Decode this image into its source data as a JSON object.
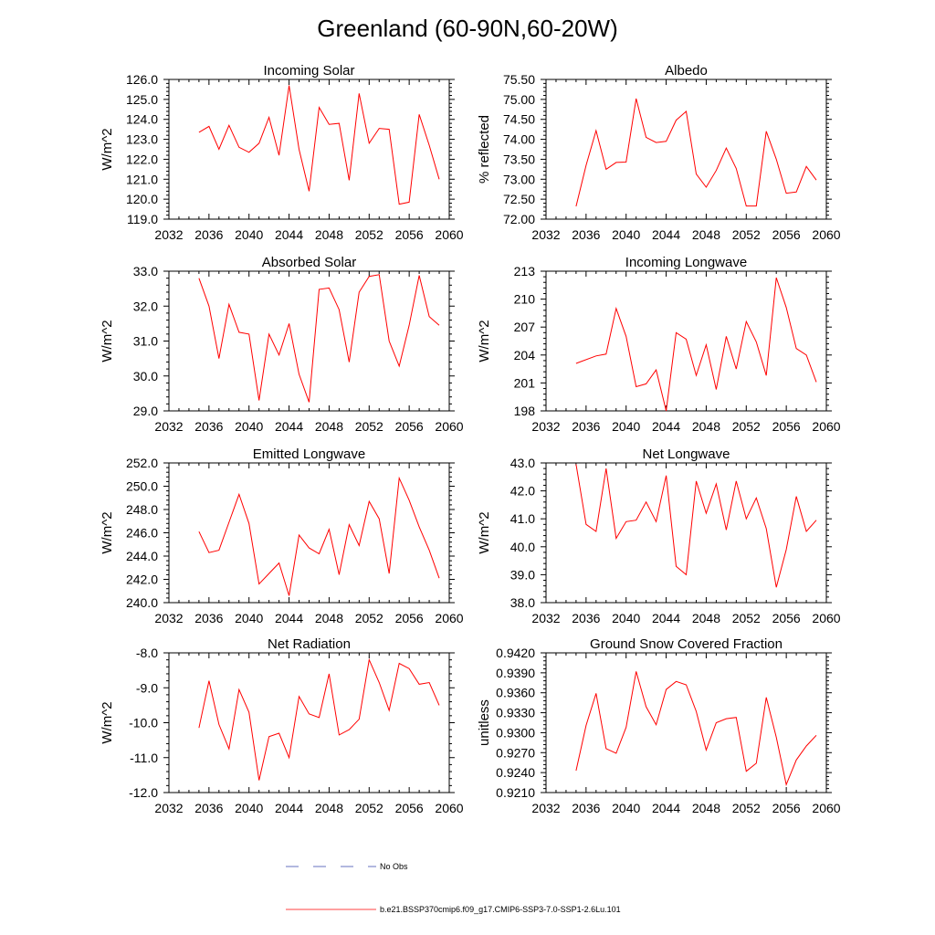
{
  "figure_title": "Greenland (60-90N,60-20W)",
  "colors": {
    "model": "#ff0000",
    "obs": "#3344aa",
    "axis": "#000000"
  },
  "legend": {
    "obs_label": "No Obs",
    "model_label": "b.e21.BSSP370cmip6.f09_g17.CMIP6-SSP3-7.0-SSP1-2.6Lu.101"
  },
  "chart_data": [
    {
      "type": "line",
      "title": "Incoming Solar",
      "ylabel": "W/m^2",
      "xlim": [
        2032,
        2060
      ],
      "ylim": [
        119.0,
        126.0
      ],
      "x_ticks": [
        2032,
        2036,
        2040,
        2044,
        2048,
        2052,
        2056,
        2060
      ],
      "y_ticks": [
        "119.0",
        "120.0",
        "121.0",
        "122.0",
        "123.0",
        "124.0",
        "125.0",
        "126.0"
      ],
      "x": [
        2035,
        2036,
        2037,
        2038,
        2039,
        2040,
        2041,
        2042,
        2043,
        2044,
        2045,
        2046,
        2047,
        2048,
        2049,
        2050,
        2051,
        2052,
        2053,
        2054,
        2055,
        2056,
        2057,
        2058,
        2059
      ],
      "series": [
        {
          "name": "b.e21.BSSP370cmip6.f09_g17.CMIP6-SSP3-7.0-SSP1-2.6Lu.101",
          "values": [
            123.35,
            123.65,
            122.5,
            123.7,
            122.6,
            122.35,
            122.8,
            124.1,
            122.2,
            125.7,
            122.5,
            120.4,
            124.6,
            123.75,
            123.8,
            120.95,
            125.3,
            122.8,
            123.55,
            123.5,
            119.75,
            119.85,
            124.25,
            122.7,
            121.0
          ]
        }
      ]
    },
    {
      "type": "line",
      "title": "Albedo",
      "ylabel": "% reflected",
      "xlim": [
        2032,
        2060
      ],
      "ylim": [
        72.0,
        75.5
      ],
      "x_ticks": [
        2032,
        2036,
        2040,
        2044,
        2048,
        2052,
        2056,
        2060
      ],
      "y_ticks": [
        "72.00",
        "72.50",
        "73.00",
        "73.50",
        "74.00",
        "74.50",
        "75.00",
        "75.50"
      ],
      "x": [
        2035,
        2036,
        2037,
        2038,
        2039,
        2040,
        2041,
        2042,
        2043,
        2044,
        2045,
        2046,
        2047,
        2048,
        2049,
        2050,
        2051,
        2052,
        2053,
        2054,
        2055,
        2056,
        2057,
        2058,
        2059
      ],
      "series": [
        {
          "name": "b.e21.BSSP370cmip6.f09_g17.CMIP6-SSP3-7.0-SSP1-2.6Lu.101",
          "values": [
            72.32,
            73.35,
            74.22,
            73.25,
            73.42,
            73.43,
            75.02,
            74.05,
            73.92,
            73.95,
            74.48,
            74.7,
            73.13,
            72.8,
            73.22,
            73.78,
            73.27,
            72.33,
            72.33,
            74.2,
            73.5,
            72.65,
            72.68,
            73.32,
            72.98
          ]
        }
      ]
    },
    {
      "type": "line",
      "title": "Absorbed Solar",
      "ylabel": "W/m^2",
      "xlim": [
        2032,
        2060
      ],
      "ylim": [
        29.0,
        33.0
      ],
      "x_ticks": [
        2032,
        2036,
        2040,
        2044,
        2048,
        2052,
        2056,
        2060
      ],
      "y_ticks": [
        "29.0",
        "30.0",
        "31.0",
        "32.0",
        "33.0"
      ],
      "x": [
        2035,
        2036,
        2037,
        2038,
        2039,
        2040,
        2041,
        2042,
        2043,
        2044,
        2045,
        2046,
        2047,
        2048,
        2049,
        2050,
        2051,
        2052,
        2053,
        2054,
        2055,
        2056,
        2057,
        2058,
        2059
      ],
      "series": [
        {
          "name": "b.e21.BSSP370cmip6.f09_g17.CMIP6-SSP3-7.0-SSP1-2.6Lu.101",
          "values": [
            32.8,
            32.0,
            30.5,
            32.05,
            31.25,
            31.2,
            29.3,
            31.2,
            30.6,
            31.5,
            30.05,
            29.25,
            32.48,
            32.52,
            31.9,
            30.4,
            32.4,
            32.85,
            32.9,
            31.0,
            30.28,
            31.45,
            32.88,
            31.7,
            31.45
          ]
        }
      ]
    },
    {
      "type": "line",
      "title": "Incoming Longwave",
      "ylabel": "W/m^2",
      "xlim": [
        2032,
        2060
      ],
      "ylim": [
        198,
        213
      ],
      "x_ticks": [
        2032,
        2036,
        2040,
        2044,
        2048,
        2052,
        2056,
        2060
      ],
      "y_ticks": [
        "198",
        "201",
        "204",
        "207",
        "210",
        "213"
      ],
      "x": [
        2035,
        2037,
        2038,
        2039,
        2040,
        2041,
        2042,
        2043,
        2044,
        2045,
        2046,
        2047,
        2048,
        2049,
        2050,
        2051,
        2052,
        2053,
        2054,
        2055,
        2056,
        2057,
        2058,
        2059
      ],
      "series": [
        {
          "name": "b.e21.BSSP370cmip6.f09_g17.CMIP6-SSP3-7.0-SSP1-2.6Lu.101",
          "values": [
            203.1,
            203.9,
            204.1,
            209.0,
            206.0,
            200.6,
            200.9,
            202.4,
            198.0,
            206.4,
            205.7,
            201.8,
            205.1,
            200.3,
            206.0,
            202.5,
            207.6,
            205.4,
            201.8,
            212.3,
            209.1,
            204.7,
            204.0,
            201.1
          ]
        }
      ]
    },
    {
      "type": "line",
      "title": "Emitted Longwave",
      "ylabel": "W/m^2",
      "xlim": [
        2032,
        2060
      ],
      "ylim": [
        240.0,
        252.0
      ],
      "x_ticks": [
        2032,
        2036,
        2040,
        2044,
        2048,
        2052,
        2056,
        2060
      ],
      "y_ticks": [
        "240.0",
        "242.0",
        "244.0",
        "246.0",
        "248.0",
        "250.0",
        "252.0"
      ],
      "x": [
        2035,
        2036,
        2037,
        2038,
        2039,
        2040,
        2041,
        2042,
        2043,
        2044,
        2045,
        2046,
        2047,
        2048,
        2049,
        2050,
        2051,
        2052,
        2053,
        2054,
        2055,
        2056,
        2057,
        2058,
        2059
      ],
      "series": [
        {
          "name": "b.e21.BSSP370cmip6.f09_g17.CMIP6-SSP3-7.0-SSP1-2.6Lu.101",
          "values": [
            246.1,
            244.3,
            244.5,
            246.9,
            249.3,
            246.8,
            241.6,
            242.5,
            243.4,
            240.6,
            245.8,
            244.7,
            244.2,
            246.3,
            242.4,
            246.7,
            244.9,
            248.7,
            247.2,
            242.5,
            250.7,
            248.8,
            246.5,
            244.5,
            242.1
          ]
        }
      ]
    },
    {
      "type": "line",
      "title": "Net Longwave",
      "ylabel": "W/m^2",
      "xlim": [
        2032,
        2060
      ],
      "ylim": [
        38.0,
        43.0
      ],
      "x_ticks": [
        2032,
        2036,
        2040,
        2044,
        2048,
        2052,
        2056,
        2060
      ],
      "y_ticks": [
        "38.0",
        "39.0",
        "40.0",
        "41.0",
        "42.0",
        "43.0"
      ],
      "x": [
        2035,
        2036,
        2037,
        2038,
        2039,
        2040,
        2041,
        2042,
        2043,
        2044,
        2045,
        2046,
        2047,
        2048,
        2049,
        2050,
        2051,
        2052,
        2053,
        2054,
        2055,
        2056,
        2057,
        2058,
        2059
      ],
      "series": [
        {
          "name": "b.e21.BSSP370cmip6.f09_g17.CMIP6-SSP3-7.0-SSP1-2.6Lu.101",
          "values": [
            42.95,
            40.8,
            40.55,
            42.8,
            40.3,
            40.9,
            40.95,
            41.6,
            40.9,
            42.55,
            39.3,
            39.0,
            42.35,
            41.2,
            42.25,
            40.6,
            42.35,
            41.0,
            41.75,
            40.65,
            38.55,
            39.9,
            41.8,
            40.55,
            40.95
          ]
        }
      ]
    },
    {
      "type": "line",
      "title": "Net Radiation",
      "ylabel": "W/m^2",
      "xlim": [
        2032,
        2060
      ],
      "ylim": [
        -12.0,
        -8.0
      ],
      "x_ticks": [
        2032,
        2036,
        2040,
        2044,
        2048,
        2052,
        2056,
        2060
      ],
      "y_ticks": [
        "-12.0",
        "-11.0",
        "-10.0",
        "-9.0",
        "-8.0"
      ],
      "x": [
        2035,
        2036,
        2037,
        2038,
        2039,
        2040,
        2041,
        2042,
        2043,
        2044,
        2045,
        2046,
        2047,
        2048,
        2049,
        2050,
        2051,
        2052,
        2053,
        2054,
        2055,
        2056,
        2057,
        2058,
        2059
      ],
      "series": [
        {
          "name": "b.e21.BSSP370cmip6.f09_g17.CMIP6-SSP3-7.0-SSP1-2.6Lu.101",
          "values": [
            -10.15,
            -8.8,
            -10.05,
            -10.75,
            -9.05,
            -9.7,
            -11.65,
            -10.4,
            -10.3,
            -11.0,
            -9.25,
            -9.75,
            -9.85,
            -8.6,
            -10.35,
            -10.2,
            -9.9,
            -8.2,
            -8.85,
            -9.65,
            -8.3,
            -8.45,
            -8.9,
            -8.85,
            -9.5
          ]
        }
      ]
    },
    {
      "type": "line",
      "title": "Ground Snow Covered Fraction",
      "ylabel": "unitless",
      "xlim": [
        2032,
        2060
      ],
      "ylim": [
        0.921,
        0.942
      ],
      "x_ticks": [
        2032,
        2036,
        2040,
        2044,
        2048,
        2052,
        2056,
        2060
      ],
      "y_ticks": [
        "0.9210",
        "0.9240",
        "0.9270",
        "0.9300",
        "0.9330",
        "0.9360",
        "0.9390",
        "0.9420"
      ],
      "x": [
        2035,
        2036,
        2037,
        2038,
        2039,
        2040,
        2041,
        2042,
        2043,
        2044,
        2045,
        2046,
        2047,
        2048,
        2049,
        2050,
        2051,
        2052,
        2053,
        2054,
        2055,
        2056,
        2057,
        2058,
        2059
      ],
      "series": [
        {
          "name": "b.e21.BSSP370cmip6.f09_g17.CMIP6-SSP3-7.0-SSP1-2.6Lu.101",
          "values": [
            0.9243,
            0.9311,
            0.9359,
            0.9276,
            0.9269,
            0.9308,
            0.9392,
            0.9339,
            0.9312,
            0.9365,
            0.9377,
            0.9372,
            0.9332,
            0.9274,
            0.9315,
            0.9321,
            0.9323,
            0.9242,
            0.9254,
            0.9353,
            0.9293,
            0.9222,
            0.9259,
            0.928,
            0.9296
          ]
        }
      ]
    }
  ]
}
